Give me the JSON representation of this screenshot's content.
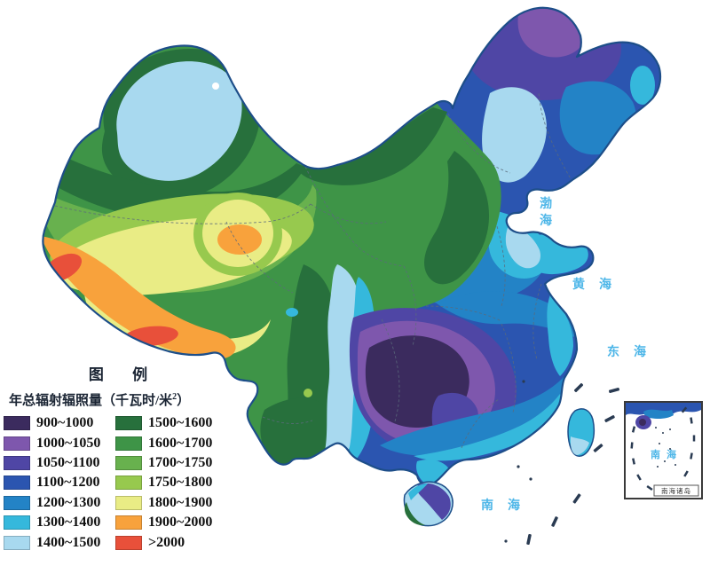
{
  "legend": {
    "title": "图 例",
    "subtitle_prefix": "年总辐射辐照量（千瓦时/米",
    "subtitle_sup": "2",
    "subtitle_suffix": "）",
    "left": [
      {
        "range": "900~1000",
        "color": "#3b2b5e"
      },
      {
        "range": "1000~1050",
        "color": "#7e57ad"
      },
      {
        "range": "1050~1100",
        "color": "#4f46a5"
      },
      {
        "range": "1100~1200",
        "color": "#2b55b0"
      },
      {
        "range": "1200~1300",
        "color": "#2383c6"
      },
      {
        "range": "1300~1400",
        "color": "#35b8dc"
      },
      {
        "range": "1400~1500",
        "color": "#a8d9ef"
      }
    ],
    "right": [
      {
        "range": "1500~1600",
        "color": "#27703c"
      },
      {
        "range": "1600~1700",
        "color": "#3e9447"
      },
      {
        "range": "1700~1750",
        "color": "#68b14e"
      },
      {
        "range": "1750~1800",
        "color": "#97c94e"
      },
      {
        "range": "1800~1900",
        "color": "#e9ec85"
      },
      {
        "range": "1900~2000",
        "color": "#f8a23c"
      },
      {
        "range": ">2000",
        "color": "#e8503a"
      }
    ]
  },
  "sea_labels": {
    "bohai": "渤海",
    "huanghai": "黄海",
    "donghai": "东海",
    "nanhai": "南海"
  },
  "inset": {
    "sea_label": "南海",
    "caption": "南海诸岛"
  }
}
